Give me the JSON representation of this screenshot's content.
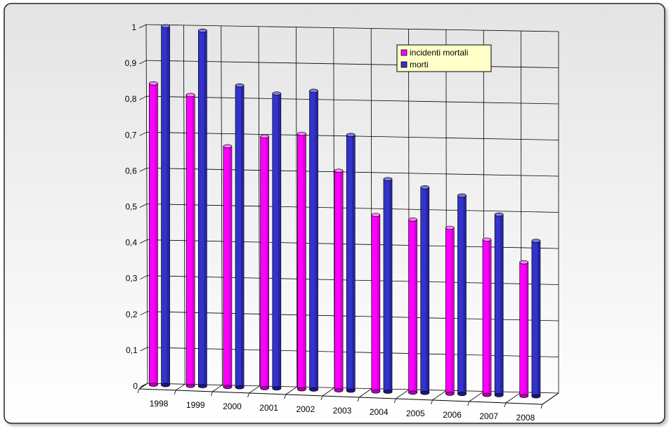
{
  "chart_data": {
    "type": "bar",
    "categories": [
      "1998",
      "1999",
      "2000",
      "2001",
      "2002",
      "2003",
      "2004",
      "2005",
      "2006",
      "2007",
      "2008"
    ],
    "series": [
      {
        "name": "incidenti mortali",
        "color": "#ff00ff",
        "values": [
          0.84,
          0.81,
          0.67,
          0.7,
          0.71,
          0.61,
          0.49,
          0.48,
          0.46,
          0.43,
          0.37
        ]
      },
      {
        "name": "morti",
        "color": "#3333cc",
        "values": [
          1.0,
          0.99,
          0.84,
          0.82,
          0.83,
          0.71,
          0.59,
          0.57,
          0.55,
          0.5,
          0.43
        ]
      }
    ],
    "yticks": [
      "0",
      "0,1",
      "0,2",
      "0,3",
      "0,4",
      "0,5",
      "0,6",
      "0,7",
      "0,8",
      "0,9",
      "1"
    ],
    "ylim": [
      0,
      1
    ],
    "grid": true,
    "legend_position": "top-right",
    "title": "",
    "xlabel": "",
    "ylabel": ""
  }
}
